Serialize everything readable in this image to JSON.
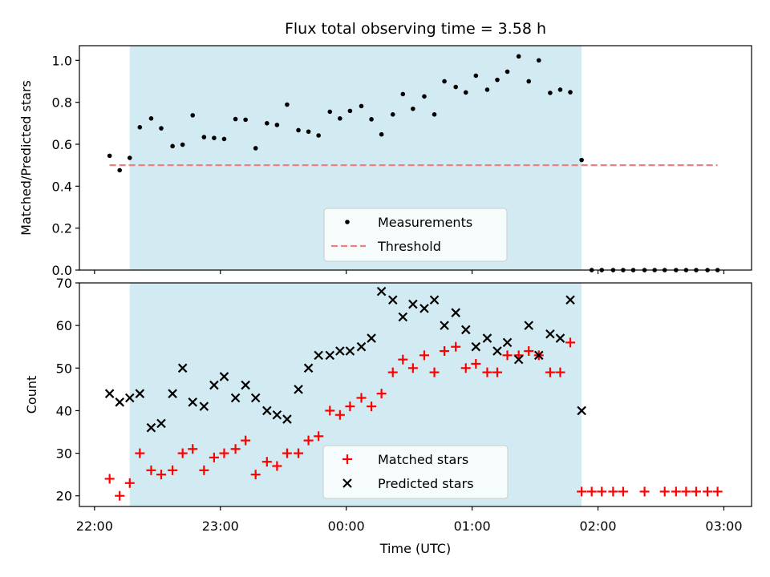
{
  "chart_data": {
    "type": "scatter",
    "title": "Flux total observing time = 3.58 h",
    "xlabel": "Time (UTC)",
    "x_unit": "hours after 22:00 UTC",
    "xlim": [
      -0.12,
      5.22
    ],
    "x_ticks": [
      {
        "value": 0,
        "label": "22:00"
      },
      {
        "value": 1,
        "label": "23:00"
      },
      {
        "value": 2,
        "label": "00:00"
      },
      {
        "value": 3,
        "label": "01:00"
      },
      {
        "value": 4,
        "label": "02:00"
      },
      {
        "value": 5,
        "label": "03:00"
      }
    ],
    "observing_window": {
      "start": 0.28,
      "end": 3.87,
      "color": "#add8e6"
    },
    "panels": [
      {
        "id": "ratio",
        "ylabel": "Matched/Predicted stars",
        "ylim": [
          0.0,
          1.07
        ],
        "y_ticks": [
          0.0,
          0.2,
          0.4,
          0.6,
          0.8,
          1.0
        ],
        "y_tick_labels": [
          "0.0",
          "0.2",
          "0.4",
          "0.6",
          "0.8",
          "1.0"
        ],
        "threshold": {
          "name": "Threshold",
          "value": 0.5,
          "x_start": 0.12,
          "x_end": 4.95,
          "color": "#f08080"
        },
        "legend": {
          "position": "lower-center",
          "entries": [
            "Measurements",
            "Threshold"
          ]
        },
        "series": [
          {
            "name": "Measurements",
            "marker": "dot",
            "color": "#000000",
            "points": [
              [
                0.12,
                0.545
              ],
              [
                0.2,
                0.476
              ],
              [
                0.28,
                0.535
              ],
              [
                0.36,
                0.681
              ],
              [
                0.45,
                0.723
              ],
              [
                0.53,
                0.676
              ],
              [
                0.62,
                0.591
              ],
              [
                0.7,
                0.598
              ],
              [
                0.78,
                0.738
              ],
              [
                0.87,
                0.634
              ],
              [
                0.95,
                0.63
              ],
              [
                1.03,
                0.625
              ],
              [
                1.12,
                0.72
              ],
              [
                1.2,
                0.717
              ],
              [
                1.28,
                0.581
              ],
              [
                1.37,
                0.7
              ],
              [
                1.45,
                0.692
              ],
              [
                1.53,
                0.789
              ],
              [
                1.62,
                0.667
              ],
              [
                1.7,
                0.66
              ],
              [
                1.78,
                0.642
              ],
              [
                1.87,
                0.755
              ],
              [
                1.95,
                0.723
              ],
              [
                2.03,
                0.759
              ],
              [
                2.12,
                0.782
              ],
              [
                2.2,
                0.719
              ],
              [
                2.28,
                0.647
              ],
              [
                2.37,
                0.742
              ],
              [
                2.45,
                0.839
              ],
              [
                2.53,
                0.769
              ],
              [
                2.62,
                0.828
              ],
              [
                2.7,
                0.742
              ],
              [
                2.78,
                0.9
              ],
              [
                2.87,
                0.873
              ],
              [
                2.95,
                0.847
              ],
              [
                3.03,
                0.927
              ],
              [
                3.12,
                0.86
              ],
              [
                3.2,
                0.907
              ],
              [
                3.28,
                0.946
              ],
              [
                3.37,
                1.019
              ],
              [
                3.45,
                0.9
              ],
              [
                3.53,
                1.0
              ],
              [
                3.62,
                0.845
              ],
              [
                3.7,
                0.86
              ],
              [
                3.78,
                0.848
              ],
              [
                3.87,
                0.525
              ],
              [
                3.95,
                0.0
              ],
              [
                4.03,
                0.0
              ],
              [
                4.12,
                0.0
              ],
              [
                4.2,
                0.0
              ],
              [
                4.28,
                0.0
              ],
              [
                4.37,
                0.0
              ],
              [
                4.45,
                0.0
              ],
              [
                4.53,
                0.0
              ],
              [
                4.62,
                0.0
              ],
              [
                4.7,
                0.0
              ],
              [
                4.78,
                0.0
              ],
              [
                4.87,
                0.0
              ],
              [
                4.95,
                0.0
              ]
            ],
            "x_limit_note": "points at x >= 3.95 plotted only where shown"
          }
        ]
      },
      {
        "id": "count",
        "ylabel": "Count",
        "ylim": [
          17.5,
          70.0
        ],
        "y_ticks": [
          20,
          30,
          40,
          50,
          60,
          70
        ],
        "y_tick_labels": [
          "20",
          "30",
          "40",
          "50",
          "60",
          "70"
        ],
        "legend": {
          "position": "lower-center",
          "entries": [
            "Matched stars",
            "Predicted stars"
          ]
        },
        "series": [
          {
            "name": "Matched stars",
            "marker": "plus",
            "color": "#ff0000",
            "points": [
              [
                0.12,
                24
              ],
              [
                0.2,
                20
              ],
              [
                0.28,
                23
              ],
              [
                0.36,
                30
              ],
              [
                0.45,
                26
              ],
              [
                0.53,
                25
              ],
              [
                0.62,
                26
              ],
              [
                0.7,
                30
              ],
              [
                0.78,
                31
              ],
              [
                0.87,
                26
              ],
              [
                0.95,
                29
              ],
              [
                1.03,
                30
              ],
              [
                1.12,
                31
              ],
              [
                1.2,
                33
              ],
              [
                1.28,
                25
              ],
              [
                1.37,
                28
              ],
              [
                1.45,
                27
              ],
              [
                1.53,
                30
              ],
              [
                1.62,
                30
              ],
              [
                1.7,
                33
              ],
              [
                1.78,
                34
              ],
              [
                1.87,
                40
              ],
              [
                1.95,
                39
              ],
              [
                2.03,
                41
              ],
              [
                2.12,
                43
              ],
              [
                2.2,
                41
              ],
              [
                2.28,
                44
              ],
              [
                2.37,
                49
              ],
              [
                2.45,
                52
              ],
              [
                2.53,
                50
              ],
              [
                2.62,
                53
              ],
              [
                2.7,
                49
              ],
              [
                2.78,
                54
              ],
              [
                2.87,
                55
              ],
              [
                2.95,
                50
              ],
              [
                3.03,
                51
              ],
              [
                3.12,
                49
              ],
              [
                3.2,
                49
              ],
              [
                3.28,
                53
              ],
              [
                3.37,
                53
              ],
              [
                3.45,
                54
              ],
              [
                3.53,
                53
              ],
              [
                3.62,
                49
              ],
              [
                3.7,
                49
              ],
              [
                3.78,
                56
              ],
              [
                3.87,
                21
              ],
              [
                3.95,
                21
              ],
              [
                4.03,
                21
              ],
              [
                4.12,
                21
              ],
              [
                4.2,
                21
              ],
              [
                4.37,
                21
              ],
              [
                4.53,
                21
              ],
              [
                4.62,
                21
              ],
              [
                4.7,
                21
              ],
              [
                4.78,
                21
              ],
              [
                4.87,
                21
              ],
              [
                4.95,
                21
              ]
            ]
          },
          {
            "name": "Predicted stars",
            "marker": "x",
            "color": "#000000",
            "points": [
              [
                0.12,
                44
              ],
              [
                0.2,
                42
              ],
              [
                0.28,
                43
              ],
              [
                0.36,
                44
              ],
              [
                0.45,
                36
              ],
              [
                0.53,
                37
              ],
              [
                0.62,
                44
              ],
              [
                0.7,
                50
              ],
              [
                0.78,
                42
              ],
              [
                0.87,
                41
              ],
              [
                0.95,
                46
              ],
              [
                1.03,
                48
              ],
              [
                1.12,
                43
              ],
              [
                1.2,
                46
              ],
              [
                1.28,
                43
              ],
              [
                1.37,
                40
              ],
              [
                1.45,
                39
              ],
              [
                1.53,
                38
              ],
              [
                1.62,
                45
              ],
              [
                1.7,
                50
              ],
              [
                1.78,
                53
              ],
              [
                1.87,
                53
              ],
              [
                1.95,
                54
              ],
              [
                2.03,
                54
              ],
              [
                2.12,
                55
              ],
              [
                2.2,
                57
              ],
              [
                2.28,
                68
              ],
              [
                2.37,
                66
              ],
              [
                2.45,
                62
              ],
              [
                2.53,
                65
              ],
              [
                2.62,
                64
              ],
              [
                2.7,
                66
              ],
              [
                2.78,
                60
              ],
              [
                2.87,
                63
              ],
              [
                2.95,
                59
              ],
              [
                3.03,
                55
              ],
              [
                3.12,
                57
              ],
              [
                3.2,
                54
              ],
              [
                3.28,
                56
              ],
              [
                3.37,
                52
              ],
              [
                3.45,
                60
              ],
              [
                3.53,
                53
              ],
              [
                3.62,
                58
              ],
              [
                3.7,
                57
              ],
              [
                3.78,
                66
              ],
              [
                3.87,
                40
              ]
            ]
          }
        ]
      }
    ]
  }
}
